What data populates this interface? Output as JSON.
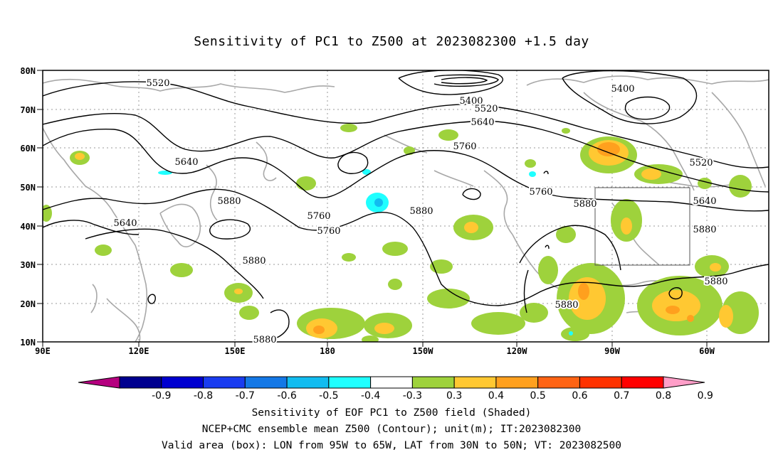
{
  "title": "Sensitivity of PC1 to Z500 at 2023082300 +1.5 day",
  "axes": {
    "lat_labels": [
      "80N",
      "70N",
      "60N",
      "50N",
      "40N",
      "30N",
      "20N",
      "10N"
    ],
    "lon_labels": [
      "90E",
      "120E",
      "150E",
      "180",
      "150W",
      "120W",
      "90W",
      "60W"
    ]
  },
  "contour_labels": [
    "5520",
    "5400",
    "5520",
    "5640",
    "5760",
    "5640",
    "5880",
    "5760",
    "5640",
    "5760",
    "5880",
    "5880",
    "5880",
    "5880",
    "5400",
    "5520",
    "5640",
    "5760",
    "5880",
    "5880",
    "5880",
    "5760",
    "5880"
  ],
  "colorbar": {
    "labels": [
      "-0.9",
      "-0.8",
      "-0.7",
      "-0.6",
      "-0.5",
      "-0.4",
      "-0.3",
      "0.3",
      "0.4",
      "0.5",
      "0.6",
      "0.7",
      "0.8",
      "0.9"
    ],
    "colors": [
      "#b5007f",
      "#00008f",
      "#0000d0",
      "#1a3cf0",
      "#1478e6",
      "#12bcf0",
      "#1fffff",
      "#ffffff",
      "#9ed23c",
      "#ffc832",
      "#ffa01e",
      "#ff6414",
      "#ff3200",
      "#ff0000",
      "#ff9ec8"
    ]
  },
  "captions": [
    "Sensitivity of EOF PC1 to Z500 field (Shaded)",
    "NCEP+CMC ensemble mean Z500 (Contour); unit(m); IT:2023082300",
    "Valid area (box): LON from 95W to 65W, LAT from 30N to 50N; VT: 2023082500"
  ]
}
